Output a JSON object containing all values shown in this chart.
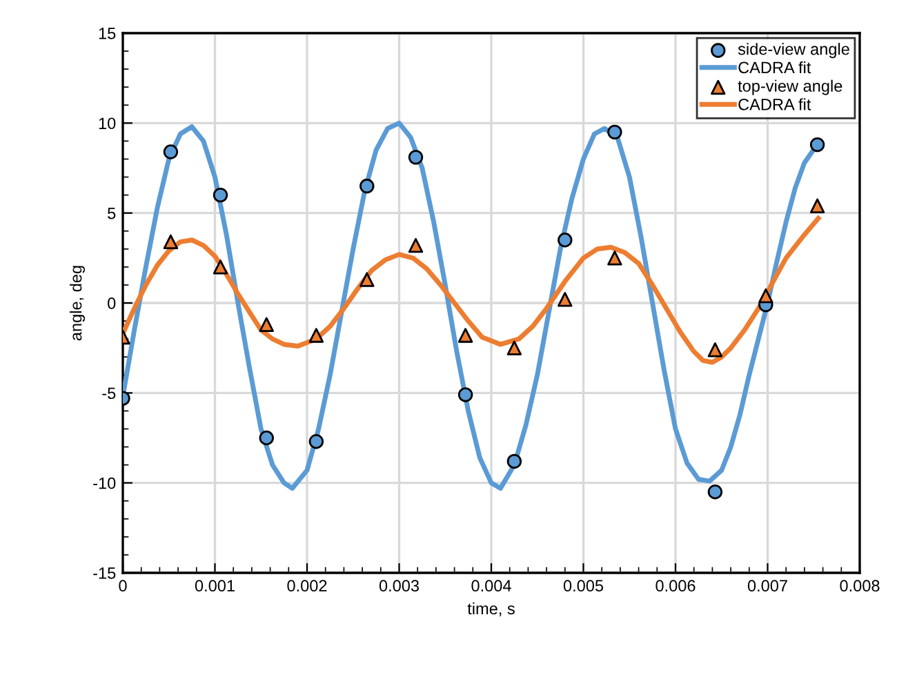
{
  "chart_data": {
    "type": "scatter",
    "xlabel": "time, s",
    "ylabel": "angle, deg",
    "xlim": [
      0,
      0.008
    ],
    "ylim": [
      -15,
      15
    ],
    "xticks": [
      0,
      0.001,
      0.002,
      0.003,
      0.004,
      0.005,
      0.006,
      0.007,
      0.008
    ],
    "yticks": [
      -15,
      -10,
      -5,
      0,
      5,
      10,
      15
    ],
    "grid": true,
    "legend": "top right",
    "series": [
      {
        "name": "side-view angle",
        "marker": "circle",
        "color": "#5b9bd5",
        "x": [
          0,
          0.00052,
          0.00106,
          0.00156,
          0.0021,
          0.00265,
          0.00318,
          0.00372,
          0.00425,
          0.0048,
          0.00534,
          0.00643,
          0.00698,
          0.00754
        ],
        "values": [
          -5.3,
          8.4,
          6.0,
          -7.5,
          -7.7,
          6.5,
          8.1,
          -5.1,
          -8.8,
          3.5,
          9.5,
          -10.5,
          -0.1,
          8.8
        ]
      },
      {
        "name": "CADRA fit",
        "type": "line",
        "color": "#5b9bd5",
        "x": [
          0,
          0.000125,
          0.00025,
          0.000375,
          0.0005,
          0.000625,
          0.00075,
          0.000875,
          0.001,
          0.001125,
          0.00125,
          0.001375,
          0.0015,
          0.001625,
          0.00175,
          0.00184,
          0.002,
          0.002125,
          0.00225,
          0.002375,
          0.0025,
          0.002625,
          0.00275,
          0.002875,
          0.003,
          0.003125,
          0.00325,
          0.003375,
          0.0035,
          0.003625,
          0.00375,
          0.003875,
          0.004,
          0.0041,
          0.00425,
          0.004375,
          0.0045,
          0.004625,
          0.00475,
          0.004875,
          0.005,
          0.00512,
          0.00523,
          0.00537,
          0.0055,
          0.005625,
          0.00575,
          0.005875,
          0.006,
          0.006125,
          0.00625,
          0.00637,
          0.0065,
          0.0066,
          0.0067,
          0.0068,
          0.0069,
          0.007,
          0.0071,
          0.0072,
          0.0073,
          0.0074,
          0.00755
        ],
        "values": [
          -5.2,
          -1.5,
          2,
          5.3,
          8,
          9.4,
          9.8,
          9.0,
          7,
          3.8,
          0,
          -3.6,
          -7,
          -9.0,
          -10,
          -10.3,
          -9.3,
          -7.0,
          -4,
          -0.5,
          3,
          6.2,
          8.5,
          9.7,
          10.0,
          9.2,
          7.5,
          4.5,
          1,
          -2.7,
          -6,
          -8.6,
          -10,
          -10.3,
          -9,
          -6.8,
          -4,
          -0.5,
          3,
          5.8,
          8,
          9.4,
          9.7,
          9.2,
          7,
          3.7,
          0,
          -3.7,
          -7,
          -8.9,
          -9.8,
          -9.9,
          -9.3,
          -8,
          -6.2,
          -4,
          -2,
          0,
          2.3,
          4.5,
          6.4,
          7.8,
          8.9
        ]
      },
      {
        "name": "top-view angle",
        "marker": "triangle",
        "color": "#ed7d31",
        "x": [
          0,
          0.00052,
          0.00106,
          0.00156,
          0.0021,
          0.00265,
          0.00318,
          0.00372,
          0.00425,
          0.0048,
          0.00534,
          0.00643,
          0.00698,
          0.00754
        ],
        "values": [
          -1.9,
          3.4,
          2.0,
          -1.2,
          -1.8,
          1.3,
          3.2,
          -1.8,
          -2.5,
          0.2,
          2.5,
          -2.6,
          0.4,
          5.4
        ]
      },
      {
        "name": "CADRA fit",
        "type": "line",
        "color": "#ed7d31",
        "x": [
          0,
          0.000125,
          0.00025,
          0.000375,
          0.0005,
          0.000625,
          0.00075,
          0.000875,
          0.001,
          0.001125,
          0.00125,
          0.001375,
          0.0015,
          0.001625,
          0.00175,
          0.0019,
          0.0021,
          0.00225,
          0.0024,
          0.00255,
          0.0027,
          0.00285,
          0.003,
          0.00315,
          0.0033,
          0.00345,
          0.0036,
          0.00375,
          0.0039,
          0.0041,
          0.0043,
          0.00445,
          0.0046,
          0.0048,
          0.005,
          0.00515,
          0.0053,
          0.00545,
          0.0056,
          0.00575,
          0.0059,
          0.00605,
          0.0062,
          0.0063,
          0.0064,
          0.0065,
          0.0066,
          0.00675,
          0.0069,
          0.00705,
          0.0072,
          0.0074,
          0.00755
        ],
        "values": [
          -1.7,
          -0.3,
          1.0,
          2.1,
          2.9,
          3.4,
          3.5,
          3.2,
          2.6,
          1.6,
          0.5,
          -0.5,
          -1.5,
          -2.0,
          -2.3,
          -2.4,
          -2.0,
          -1.3,
          -0.3,
          0.8,
          1.8,
          2.4,
          2.7,
          2.5,
          1.9,
          1.0,
          0,
          -1.0,
          -1.9,
          -2.3,
          -2.0,
          -1.3,
          -0.3,
          1.2,
          2.5,
          3.0,
          3.1,
          2.8,
          2.2,
          1.0,
          -0.3,
          -1.6,
          -2.7,
          -3.2,
          -3.3,
          -3.0,
          -2.5,
          -1.5,
          -0.3,
          1.1,
          2.5,
          3.8,
          4.7
        ]
      }
    ]
  }
}
